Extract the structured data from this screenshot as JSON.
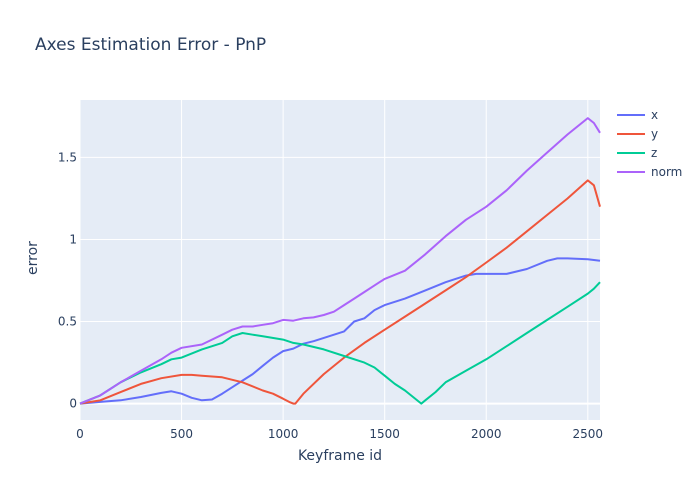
{
  "chart_data": {
    "type": "line",
    "title": "Axes Estimation Error - PnP",
    "xlabel": "Keyframe id",
    "ylabel": "error",
    "xlim": [
      0,
      2560
    ],
    "ylim": [
      -0.1,
      1.85
    ],
    "xticks": [
      0,
      500,
      1000,
      1500,
      2000,
      2500
    ],
    "xtick_labels": [
      "0",
      "500",
      "1000",
      "1500",
      "2000",
      "2500"
    ],
    "yticks": [
      0,
      0.5,
      1,
      1.5
    ],
    "ytick_labels": [
      "0",
      "0.5",
      "1",
      "1.5"
    ],
    "grid": true,
    "legend": "right",
    "series": [
      {
        "name": "x",
        "color": "#636efa",
        "x": [
          0,
          100,
          200,
          300,
          400,
          450,
          500,
          550,
          600,
          650,
          700,
          750,
          800,
          850,
          900,
          950,
          1000,
          1050,
          1100,
          1150,
          1200,
          1300,
          1350,
          1400,
          1450,
          1500,
          1600,
          1700,
          1800,
          1900,
          1950,
          2000,
          2100,
          2200,
          2300,
          2350,
          2400,
          2500,
          2560
        ],
        "y": [
          0,
          0.01,
          0.02,
          0.04,
          0.065,
          0.075,
          0.06,
          0.035,
          0.02,
          0.025,
          0.06,
          0.1,
          0.14,
          0.18,
          0.23,
          0.28,
          0.32,
          0.335,
          0.365,
          0.38,
          0.4,
          0.44,
          0.5,
          0.52,
          0.57,
          0.6,
          0.64,
          0.69,
          0.74,
          0.78,
          0.79,
          0.79,
          0.79,
          0.82,
          0.87,
          0.885,
          0.885,
          0.88,
          0.87
        ]
      },
      {
        "name": "y",
        "color": "#ef553b",
        "x": [
          0,
          100,
          200,
          300,
          400,
          500,
          550,
          600,
          700,
          800,
          900,
          950,
          1000,
          1030,
          1050,
          1060,
          1100,
          1200,
          1300,
          1400,
          1500,
          1600,
          1700,
          1800,
          1900,
          2000,
          2100,
          2200,
          2300,
          2400,
          2500,
          2530,
          2560
        ],
        "y": [
          0,
          0.02,
          0.07,
          0.12,
          0.155,
          0.175,
          0.175,
          0.17,
          0.16,
          0.13,
          0.08,
          0.06,
          0.03,
          0.01,
          0.0,
          0.0,
          0.06,
          0.18,
          0.28,
          0.37,
          0.45,
          0.53,
          0.61,
          0.69,
          0.77,
          0.86,
          0.95,
          1.05,
          1.15,
          1.25,
          1.36,
          1.33,
          1.2
        ]
      },
      {
        "name": "z",
        "color": "#00cc96",
        "x": [
          0,
          100,
          200,
          300,
          400,
          450,
          500,
          600,
          700,
          750,
          800,
          850,
          900,
          1000,
          1050,
          1100,
          1200,
          1300,
          1400,
          1450,
          1500,
          1550,
          1600,
          1680,
          1700,
          1750,
          1800,
          1900,
          2000,
          2100,
          2200,
          2300,
          2400,
          2500,
          2530,
          2560
        ],
        "y": [
          0,
          0.05,
          0.13,
          0.19,
          0.24,
          0.27,
          0.28,
          0.33,
          0.37,
          0.41,
          0.43,
          0.42,
          0.41,
          0.39,
          0.37,
          0.36,
          0.33,
          0.29,
          0.25,
          0.22,
          0.17,
          0.12,
          0.08,
          0.0,
          0.02,
          0.07,
          0.13,
          0.2,
          0.27,
          0.35,
          0.43,
          0.51,
          0.59,
          0.67,
          0.7,
          0.74
        ]
      },
      {
        "name": "norm",
        "color": "#ab63fa",
        "x": [
          0,
          100,
          200,
          300,
          400,
          450,
          500,
          600,
          700,
          750,
          800,
          850,
          900,
          950,
          1000,
          1050,
          1100,
          1150,
          1200,
          1250,
          1300,
          1350,
          1400,
          1450,
          1500,
          1600,
          1700,
          1800,
          1900,
          2000,
          2100,
          2200,
          2300,
          2400,
          2500,
          2530,
          2560
        ],
        "y": [
          0,
          0.05,
          0.13,
          0.2,
          0.27,
          0.31,
          0.34,
          0.36,
          0.42,
          0.45,
          0.47,
          0.47,
          0.48,
          0.49,
          0.51,
          0.505,
          0.52,
          0.525,
          0.54,
          0.56,
          0.6,
          0.64,
          0.68,
          0.72,
          0.76,
          0.81,
          0.91,
          1.02,
          1.12,
          1.2,
          1.3,
          1.42,
          1.53,
          1.64,
          1.74,
          1.71,
          1.65
        ]
      }
    ]
  }
}
